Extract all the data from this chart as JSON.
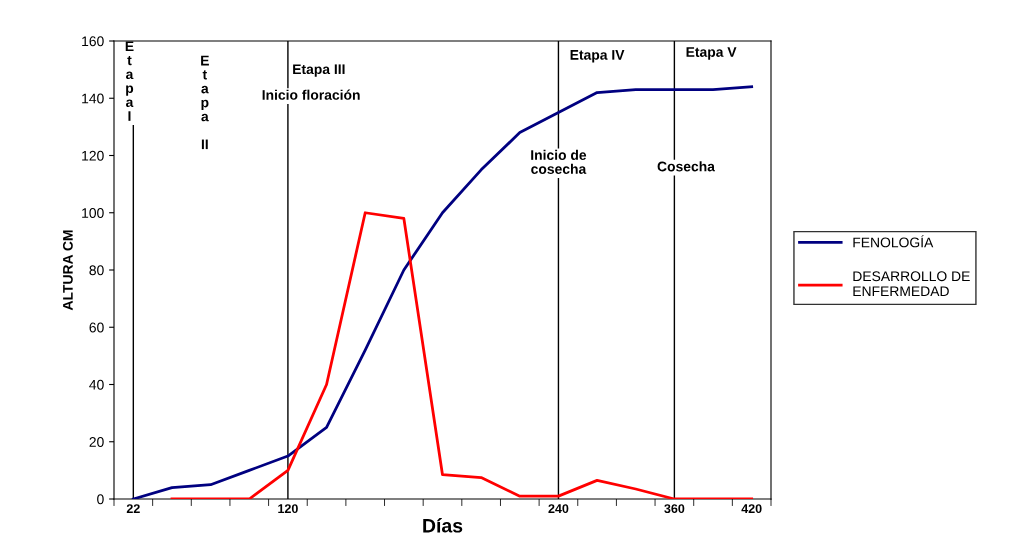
{
  "chart_data": {
    "type": "line",
    "categories": [
      "22",
      null,
      null,
      null,
      "120",
      null,
      null,
      null,
      null,
      null,
      null,
      "240",
      null,
      null,
      "360",
      null,
      "420"
    ],
    "series": [
      {
        "name": "FENOLOGÍA",
        "color": "#000080",
        "values": [
          0,
          4,
          5,
          10,
          15,
          25,
          52,
          80,
          100,
          115,
          128,
          135,
          142,
          143,
          143,
          143,
          144
        ]
      },
      {
        "name": "DESARROLLO DE\nENFERMEDAD",
        "color": "#ff0000",
        "values": [
          null,
          0,
          0,
          0,
          10,
          40,
          100,
          98,
          8.5,
          7.5,
          1,
          1,
          6.5,
          3.5,
          0,
          0,
          0
        ]
      }
    ],
    "xlabel": "Días",
    "ylabel": "ALTURA CM",
    "ylim": [
      0,
      160
    ],
    "yticks": [
      0,
      20,
      40,
      60,
      80,
      100,
      120,
      140,
      160
    ],
    "ref_lines": [
      {
        "axis": "x",
        "value": "22",
        "color": "#000000"
      },
      {
        "axis": "x",
        "value": "120",
        "color": "#000000"
      },
      {
        "axis": "x",
        "value": "240",
        "color": "#000000"
      },
      {
        "axis": "x",
        "value": "360",
        "color": "#000000"
      }
    ],
    "annotations": [
      "E\nt\na\np\na\nI",
      "E\nt\na\np\na\n\nII",
      "Etapa III",
      "Inicio floración",
      "Etapa IV",
      "Inicio de\ncosecha",
      "Etapa V",
      "Cosecha"
    ],
    "grid": false,
    "legend": "right",
    "marker": "none",
    "line_style": "solid"
  }
}
